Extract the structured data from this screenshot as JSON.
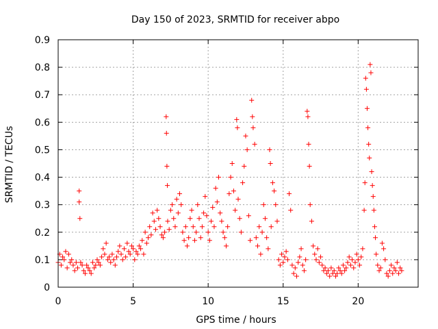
{
  "chart_data": {
    "type": "scatter",
    "title": "Day 150 of 2023, SRMTID for receiver abpo",
    "xlabel": "GPS time / hours",
    "ylabel": "SRMTID / TECUs",
    "xlim": [
      0,
      24
    ],
    "ylim": [
      0,
      0.9
    ],
    "xticks": [
      0,
      5,
      10,
      15,
      20
    ],
    "yticks": [
      0,
      0.1,
      0.2,
      0.3,
      0.4,
      0.5,
      0.6,
      0.7,
      0.8,
      0.9
    ],
    "xtick_labels": [
      "0",
      "5",
      "10",
      "15",
      "20"
    ],
    "ytick_labels": [
      "0",
      "0.1",
      "0.2",
      "0.3",
      "0.4",
      "0.5",
      "0.6",
      "0.7",
      "0.8",
      "0.9"
    ],
    "grid": true,
    "marker": "plus",
    "series": [
      {
        "name": "SRMTID",
        "color": "#ff0000",
        "points": [
          [
            0.0,
            0.09
          ],
          [
            0.1,
            0.12
          ],
          [
            0.2,
            0.08
          ],
          [
            0.3,
            0.11
          ],
          [
            0.4,
            0.1
          ],
          [
            0.5,
            0.13
          ],
          [
            0.6,
            0.07
          ],
          [
            0.7,
            0.12
          ],
          [
            0.8,
            0.09
          ],
          [
            0.9,
            0.1
          ],
          [
            1.0,
            0.08
          ],
          [
            1.1,
            0.06
          ],
          [
            1.2,
            0.09
          ],
          [
            1.3,
            0.07
          ],
          [
            1.4,
            0.35
          ],
          [
            1.4,
            0.31
          ],
          [
            1.45,
            0.25
          ],
          [
            1.5,
            0.09
          ],
          [
            1.6,
            0.08
          ],
          [
            1.7,
            0.06
          ],
          [
            1.8,
            0.05
          ],
          [
            1.9,
            0.08
          ],
          [
            2.0,
            0.07
          ],
          [
            2.1,
            0.06
          ],
          [
            2.2,
            0.05
          ],
          [
            2.3,
            0.09
          ],
          [
            2.4,
            0.07
          ],
          [
            2.5,
            0.08
          ],
          [
            2.6,
            0.1
          ],
          [
            2.7,
            0.09
          ],
          [
            2.8,
            0.08
          ],
          [
            2.9,
            0.11
          ],
          [
            3.0,
            0.14
          ],
          [
            3.1,
            0.12
          ],
          [
            3.2,
            0.16
          ],
          [
            3.3,
            0.1
          ],
          [
            3.4,
            0.11
          ],
          [
            3.5,
            0.09
          ],
          [
            3.6,
            0.12
          ],
          [
            3.7,
            0.1
          ],
          [
            3.8,
            0.08
          ],
          [
            3.9,
            0.11
          ],
          [
            4.0,
            0.13
          ],
          [
            4.1,
            0.15
          ],
          [
            4.2,
            0.12
          ],
          [
            4.3,
            0.1
          ],
          [
            4.4,
            0.14
          ],
          [
            4.5,
            0.11
          ],
          [
            4.6,
            0.16
          ],
          [
            4.7,
            0.13
          ],
          [
            4.8,
            0.12
          ],
          [
            4.9,
            0.15
          ],
          [
            5.0,
            0.14
          ],
          [
            5.1,
            0.1
          ],
          [
            5.2,
            0.13
          ],
          [
            5.3,
            0.12
          ],
          [
            5.4,
            0.15
          ],
          [
            5.5,
            0.14
          ],
          [
            5.6,
            0.17
          ],
          [
            5.7,
            0.12
          ],
          [
            5.8,
            0.2
          ],
          [
            5.9,
            0.16
          ],
          [
            6.0,
            0.18
          ],
          [
            6.1,
            0.22
          ],
          [
            6.2,
            0.19
          ],
          [
            6.3,
            0.27
          ],
          [
            6.4,
            0.24
          ],
          [
            6.5,
            0.21
          ],
          [
            6.6,
            0.28
          ],
          [
            6.7,
            0.25
          ],
          [
            6.8,
            0.22
          ],
          [
            6.9,
            0.19
          ],
          [
            7.0,
            0.18
          ],
          [
            7.1,
            0.2
          ],
          [
            7.2,
            0.62
          ],
          [
            7.22,
            0.56
          ],
          [
            7.25,
            0.44
          ],
          [
            7.28,
            0.37
          ],
          [
            7.3,
            0.24
          ],
          [
            7.4,
            0.21
          ],
          [
            7.5,
            0.28
          ],
          [
            7.6,
            0.3
          ],
          [
            7.7,
            0.25
          ],
          [
            7.8,
            0.22
          ],
          [
            7.9,
            0.32
          ],
          [
            8.0,
            0.27
          ],
          [
            8.1,
            0.34
          ],
          [
            8.2,
            0.3
          ],
          [
            8.3,
            0.2
          ],
          [
            8.4,
            0.17
          ],
          [
            8.5,
            0.22
          ],
          [
            8.6,
            0.15
          ],
          [
            8.7,
            0.18
          ],
          [
            8.8,
            0.25
          ],
          [
            8.9,
            0.28
          ],
          [
            9.0,
            0.22
          ],
          [
            9.1,
            0.17
          ],
          [
            9.2,
            0.2
          ],
          [
            9.3,
            0.3
          ],
          [
            9.4,
            0.25
          ],
          [
            9.5,
            0.18
          ],
          [
            9.6,
            0.22
          ],
          [
            9.7,
            0.27
          ],
          [
            9.8,
            0.33
          ],
          [
            9.9,
            0.26
          ],
          [
            10.0,
            0.2
          ],
          [
            10.1,
            0.17
          ],
          [
            10.2,
            0.24
          ],
          [
            10.3,
            0.29
          ],
          [
            10.4,
            0.22
          ],
          [
            10.5,
            0.36
          ],
          [
            10.6,
            0.31
          ],
          [
            10.7,
            0.4
          ],
          [
            10.8,
            0.27
          ],
          [
            10.9,
            0.24
          ],
          [
            11.0,
            0.2
          ],
          [
            11.1,
            0.18
          ],
          [
            11.2,
            0.15
          ],
          [
            11.3,
            0.22
          ],
          [
            11.4,
            0.34
          ],
          [
            11.5,
            0.4
          ],
          [
            11.6,
            0.45
          ],
          [
            11.7,
            0.35
          ],
          [
            11.8,
            0.28
          ],
          [
            11.9,
            0.61
          ],
          [
            11.95,
            0.58
          ],
          [
            12.0,
            0.32
          ],
          [
            12.1,
            0.25
          ],
          [
            12.2,
            0.2
          ],
          [
            12.3,
            0.38
          ],
          [
            12.4,
            0.44
          ],
          [
            12.5,
            0.55
          ],
          [
            12.6,
            0.5
          ],
          [
            12.7,
            0.26
          ],
          [
            12.8,
            0.17
          ],
          [
            12.9,
            0.68
          ],
          [
            12.95,
            0.62
          ],
          [
            13.0,
            0.58
          ],
          [
            13.1,
            0.52
          ],
          [
            13.2,
            0.18
          ],
          [
            13.3,
            0.15
          ],
          [
            13.4,
            0.22
          ],
          [
            13.5,
            0.12
          ],
          [
            13.6,
            0.2
          ],
          [
            13.7,
            0.3
          ],
          [
            13.8,
            0.25
          ],
          [
            13.9,
            0.18
          ],
          [
            14.0,
            0.14
          ],
          [
            14.1,
            0.5
          ],
          [
            14.15,
            0.45
          ],
          [
            14.2,
            0.22
          ],
          [
            14.3,
            0.38
          ],
          [
            14.4,
            0.35
          ],
          [
            14.5,
            0.3
          ],
          [
            14.6,
            0.24
          ],
          [
            14.7,
            0.1
          ],
          [
            14.8,
            0.08
          ],
          [
            14.9,
            0.12
          ],
          [
            15.0,
            0.09
          ],
          [
            15.1,
            0.11
          ],
          [
            15.2,
            0.13
          ],
          [
            15.3,
            0.1
          ],
          [
            15.4,
            0.34
          ],
          [
            15.5,
            0.28
          ],
          [
            15.6,
            0.08
          ],
          [
            15.7,
            0.05
          ],
          [
            15.8,
            0.07
          ],
          [
            15.9,
            0.04
          ],
          [
            16.0,
            0.09
          ],
          [
            16.1,
            0.11
          ],
          [
            16.2,
            0.14
          ],
          [
            16.3,
            0.08
          ],
          [
            16.4,
            0.06
          ],
          [
            16.5,
            0.1
          ],
          [
            16.6,
            0.64
          ],
          [
            16.65,
            0.62
          ],
          [
            16.7,
            0.52
          ],
          [
            16.75,
            0.44
          ],
          [
            16.8,
            0.3
          ],
          [
            16.9,
            0.24
          ],
          [
            17.0,
            0.15
          ],
          [
            17.1,
            0.12
          ],
          [
            17.2,
            0.1
          ],
          [
            17.3,
            0.14
          ],
          [
            17.4,
            0.09
          ],
          [
            17.5,
            0.11
          ],
          [
            17.6,
            0.08
          ],
          [
            17.7,
            0.06
          ],
          [
            17.8,
            0.07
          ],
          [
            17.9,
            0.05
          ],
          [
            18.0,
            0.06
          ],
          [
            18.1,
            0.04
          ],
          [
            18.2,
            0.07
          ],
          [
            18.3,
            0.05
          ],
          [
            18.4,
            0.06
          ],
          [
            18.5,
            0.04
          ],
          [
            18.6,
            0.05
          ],
          [
            18.7,
            0.07
          ],
          [
            18.8,
            0.06
          ],
          [
            18.9,
            0.05
          ],
          [
            19.0,
            0.08
          ],
          [
            19.1,
            0.06
          ],
          [
            19.2,
            0.07
          ],
          [
            19.3,
            0.09
          ],
          [
            19.4,
            0.11
          ],
          [
            19.5,
            0.08
          ],
          [
            19.6,
            0.1
          ],
          [
            19.7,
            0.07
          ],
          [
            19.8,
            0.09
          ],
          [
            19.9,
            0.12
          ],
          [
            20.0,
            0.1
          ],
          [
            20.1,
            0.08
          ],
          [
            20.2,
            0.11
          ],
          [
            20.3,
            0.14
          ],
          [
            20.4,
            0.28
          ],
          [
            20.45,
            0.38
          ],
          [
            20.5,
            0.76
          ],
          [
            20.55,
            0.72
          ],
          [
            20.6,
            0.65
          ],
          [
            20.65,
            0.58
          ],
          [
            20.7,
            0.52
          ],
          [
            20.75,
            0.47
          ],
          [
            20.8,
            0.81
          ],
          [
            20.85,
            0.78
          ],
          [
            20.9,
            0.42
          ],
          [
            20.95,
            0.37
          ],
          [
            21.0,
            0.33
          ],
          [
            21.05,
            0.28
          ],
          [
            21.1,
            0.22
          ],
          [
            21.15,
            0.18
          ],
          [
            21.2,
            0.12
          ],
          [
            21.3,
            0.08
          ],
          [
            21.4,
            0.06
          ],
          [
            21.5,
            0.07
          ],
          [
            21.6,
            0.16
          ],
          [
            21.7,
            0.14
          ],
          [
            21.8,
            0.1
          ],
          [
            21.9,
            0.05
          ],
          [
            22.0,
            0.04
          ],
          [
            22.1,
            0.06
          ],
          [
            22.2,
            0.08
          ],
          [
            22.3,
            0.05
          ],
          [
            22.4,
            0.07
          ],
          [
            22.5,
            0.06
          ],
          [
            22.6,
            0.09
          ],
          [
            22.7,
            0.05
          ],
          [
            22.8,
            0.07
          ],
          [
            22.9,
            0.06
          ]
        ]
      }
    ]
  }
}
